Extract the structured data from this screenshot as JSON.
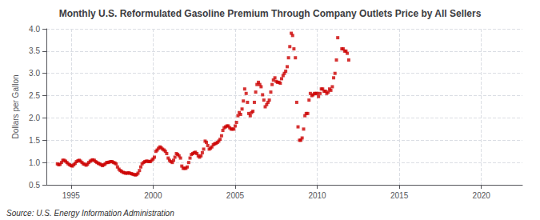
{
  "chart_data": {
    "type": "scatter",
    "title": "Monthly U.S. Reformulated Gasoline Premium Through Company Outlets Price by All Sellers",
    "ylabel": "Dollars per Gallon",
    "annotations": [
      "Source: U.S. Energy Information Administration"
    ],
    "color": "#cc0000",
    "marker": "square",
    "grid": true,
    "xlim": [
      1993.5,
      2022.5
    ],
    "xticks": [
      1995,
      2000,
      2005,
      2010,
      2015,
      2020
    ],
    "ylim": [
      0.5,
      4.0
    ],
    "yticks": [
      0.5,
      {
        "value": 1,
        "label": "1.0"
      },
      1.5,
      {
        "value": 2,
        "label": "2.0"
      },
      2.5,
      {
        "value": 3,
        "label": "3.0"
      },
      3.5,
      {
        "value": 4,
        "label": "4.0"
      }
    ],
    "x": [
      1994.17,
      1994.25,
      1994.33,
      1994.42,
      1994.5,
      1994.58,
      1994.67,
      1994.75,
      1994.83,
      1994.92,
      1995,
      1995.08,
      1995.17,
      1995.25,
      1995.33,
      1995.42,
      1995.5,
      1995.58,
      1995.67,
      1995.75,
      1995.83,
      1995.92,
      1996,
      1996.08,
      1996.17,
      1996.25,
      1996.33,
      1996.42,
      1996.5,
      1996.58,
      1996.67,
      1996.75,
      1996.83,
      1996.92,
      1997,
      1997.08,
      1997.17,
      1997.25,
      1997.33,
      1997.42,
      1997.5,
      1997.58,
      1997.67,
      1997.75,
      1997.83,
      1997.92,
      1998,
      1998.08,
      1998.17,
      1998.25,
      1998.33,
      1998.42,
      1998.5,
      1998.58,
      1998.67,
      1998.75,
      1998.83,
      1998.92,
      1999,
      1999.08,
      1999.17,
      1999.25,
      1999.33,
      1999.42,
      1999.5,
      1999.58,
      1999.67,
      1999.75,
      1999.83,
      1999.92,
      2000,
      2000.08,
      2000.17,
      2000.25,
      2000.33,
      2000.42,
      2000.5,
      2000.58,
      2000.67,
      2000.75,
      2000.83,
      2000.92,
      2001,
      2001.08,
      2001.17,
      2001.25,
      2001.33,
      2001.42,
      2001.5,
      2001.58,
      2001.67,
      2001.75,
      2001.83,
      2001.92,
      2002,
      2002.08,
      2002.17,
      2002.25,
      2002.33,
      2002.42,
      2002.5,
      2002.58,
      2002.67,
      2002.75,
      2002.83,
      2002.92,
      2003,
      2003.08,
      2003.17,
      2003.25,
      2003.33,
      2003.42,
      2003.5,
      2003.58,
      2003.67,
      2003.75,
      2003.83,
      2003.92,
      2004,
      2004.08,
      2004.17,
      2004.25,
      2004.33,
      2004.42,
      2004.5,
      2004.58,
      2004.67,
      2004.75,
      2004.83,
      2004.92,
      2005,
      2005.08,
      2005.17,
      2005.25,
      2005.33,
      2005.42,
      2005.5,
      2005.58,
      2005.67,
      2005.75,
      2005.83,
      2005.92,
      2006,
      2006.08,
      2006.17,
      2006.25,
      2006.33,
      2006.42,
      2006.5,
      2006.58,
      2006.67,
      2006.75,
      2006.83,
      2006.92,
      2007,
      2007.08,
      2007.17,
      2007.25,
      2007.33,
      2007.42,
      2007.5,
      2007.58,
      2007.67,
      2007.75,
      2007.83,
      2007.92,
      2008,
      2008.08,
      2008.17,
      2008.25,
      2008.33,
      2008.42,
      2008.5,
      2008.58,
      2008.67,
      2008.75,
      2008.83,
      2008.92,
      2009,
      2009.08,
      2009.17,
      2009.25,
      2009.33,
      2009.42,
      2009.5,
      2009.58,
      2009.67,
      2009.75,
      2009.83,
      2009.92,
      2010,
      2010.08,
      2010.17,
      2010.25,
      2010.33,
      2010.42,
      2010.5,
      2010.58,
      2010.67,
      2010.75,
      2010.83,
      2010.92,
      2011,
      2011.08,
      2011.17,
      2011.25,
      2011.5,
      2011.58,
      2011.67,
      2011.75,
      2011.83,
      2011.92
    ],
    "values": [
      0.97,
      0.95,
      0.96,
      1.0,
      1.05,
      1.05,
      1.03,
      1.0,
      0.97,
      0.95,
      0.93,
      0.92,
      0.95,
      0.98,
      1.02,
      1.04,
      1.05,
      1.03,
      1.0,
      0.97,
      0.96,
      0.94,
      0.96,
      1.0,
      1.03,
      1.05,
      1.06,
      1.05,
      1.02,
      1.0,
      0.98,
      0.97,
      0.95,
      0.93,
      0.95,
      0.97,
      1.0,
      1.0,
      1.01,
      1.02,
      1.02,
      1.0,
      0.99,
      0.97,
      0.9,
      0.85,
      0.82,
      0.8,
      0.78,
      0.77,
      0.76,
      0.76,
      0.77,
      0.76,
      0.75,
      0.74,
      0.73,
      0.72,
      0.73,
      0.76,
      0.82,
      0.9,
      0.97,
      1.0,
      1.02,
      1.03,
      1.03,
      1.02,
      1.02,
      1.05,
      1.08,
      1.12,
      1.25,
      1.28,
      1.32,
      1.35,
      1.33,
      1.3,
      1.28,
      1.25,
      1.2,
      1.1,
      1.05,
      1.02,
      1.0,
      1.05,
      1.12,
      1.2,
      1.18,
      1.15,
      1.1,
      0.92,
      0.87,
      0.87,
      0.87,
      0.9,
      1.0,
      1.1,
      1.18,
      1.2,
      1.22,
      1.23,
      1.2,
      1.15,
      1.12,
      1.15,
      1.22,
      1.3,
      1.48,
      1.45,
      1.38,
      1.3,
      1.32,
      1.35,
      1.4,
      1.42,
      1.43,
      1.45,
      1.48,
      1.52,
      1.6,
      1.72,
      1.78,
      1.8,
      1.82,
      1.82,
      1.78,
      1.75,
      1.75,
      1.75,
      1.82,
      1.9,
      2.05,
      2.12,
      2.08,
      2.2,
      2.38,
      2.65,
      2.55,
      2.35,
      2.1,
      2.05,
      2.12,
      2.15,
      2.35,
      2.58,
      2.75,
      2.8,
      2.75,
      2.7,
      2.52,
      2.4,
      2.25,
      2.3,
      2.35,
      2.4,
      2.58,
      2.75,
      2.85,
      2.9,
      2.82,
      2.8,
      2.8,
      2.78,
      2.88,
      2.95,
      3.0,
      3.05,
      3.15,
      3.35,
      3.6,
      3.9,
      3.85,
      3.55,
      3.35,
      2.35,
      1.8,
      1.5,
      1.5,
      1.55,
      1.75,
      2.05,
      2.1,
      2.1,
      2.4,
      2.55,
      2.5,
      2.52,
      2.55,
      2.55,
      2.55,
      2.48,
      2.55,
      2.65,
      2.65,
      2.6,
      2.6,
      2.55,
      2.58,
      2.65,
      2.62,
      2.7,
      2.9,
      3.0,
      3.3,
      3.8,
      3.55,
      3.55,
      3.5,
      3.5,
      3.45,
      3.3
    ]
  }
}
